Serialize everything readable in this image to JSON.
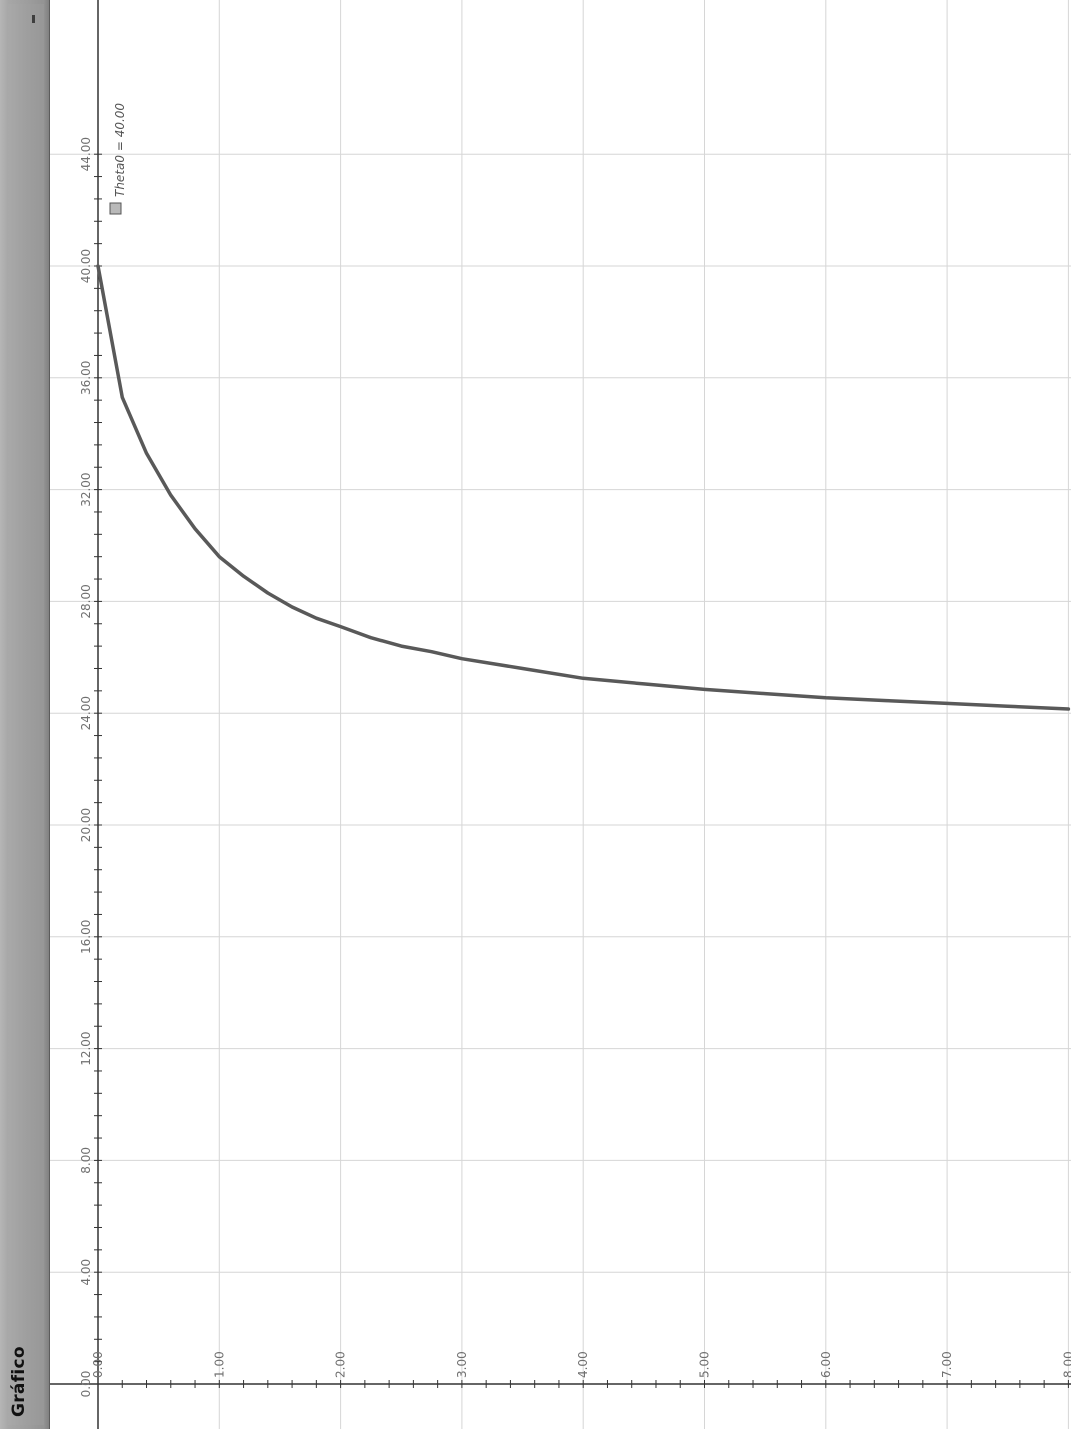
{
  "window": {
    "title": "Gráfico",
    "minimize_label": "-"
  },
  "colors": {
    "grid": "#d6d6d6",
    "axis": "#333333",
    "curve": "#595959",
    "tick_label": "#6f6f6f",
    "legend_swatch": "#b9b9b9",
    "panel": "#a0a0a0"
  },
  "chart_data": {
    "type": "line",
    "title": "",
    "xlabel": "",
    "ylabel": "",
    "orientation": "rotated 90 degrees clockwise",
    "xlim": [
      0,
      8
    ],
    "ylim": [
      0,
      44
    ],
    "x_ticks": [
      "0.00",
      "1.00",
      "2.00",
      "3.00",
      "4.00",
      "5.00",
      "6.00",
      "7.00",
      "8.00"
    ],
    "y_ticks": [
      "0.00",
      "4.00",
      "8.00",
      "12.00",
      "16.00",
      "20.00",
      "24.00",
      "28.00",
      "32.00",
      "36.00",
      "40.00",
      "44.00"
    ],
    "grid": true,
    "legend_position": "top-left",
    "series": [
      {
        "name": "Theta0 = 40.00",
        "x": [
          0.0,
          0.2,
          0.4,
          0.6,
          0.8,
          1.0,
          1.2,
          1.4,
          1.6,
          1.8,
          2.0,
          2.25,
          2.5,
          2.75,
          3.0,
          3.5,
          4.0,
          4.5,
          5.0,
          5.5,
          6.0,
          6.5,
          7.0,
          7.5,
          8.0
        ],
        "y": [
          40.0,
          35.3,
          33.3,
          31.8,
          30.6,
          29.6,
          28.9,
          28.3,
          27.8,
          27.4,
          27.1,
          26.7,
          26.4,
          26.2,
          25.95,
          25.6,
          25.25,
          25.05,
          24.85,
          24.7,
          24.55,
          24.45,
          24.35,
          24.25,
          24.15
        ]
      }
    ]
  }
}
